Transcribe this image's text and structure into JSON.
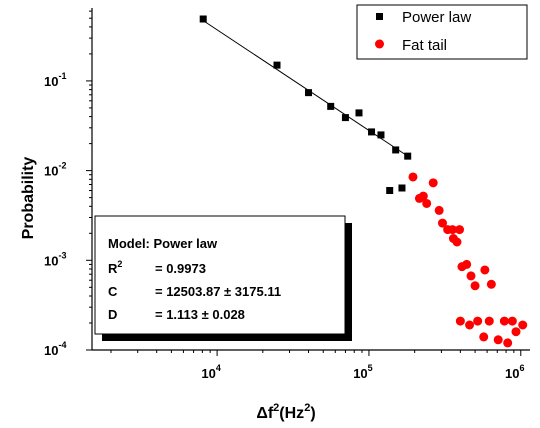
{
  "chart_data": {
    "type": "scatter",
    "title": "",
    "xlabel": {
      "prefix": "Δf",
      "sup": "2",
      "main": "(Hz",
      "sup2": "2",
      "suffix": ")"
    },
    "ylabel": "Probability",
    "xscale": "log",
    "yscale": "log",
    "xlim": [
      1500,
      1150000
    ],
    "ylim": [
      0.0001,
      0.65
    ],
    "xticks": [
      {
        "base": "10",
        "exp": "4"
      },
      {
        "base": "10",
        "exp": "5"
      },
      {
        "base": "10",
        "exp": "6"
      }
    ],
    "yticks": [
      {
        "base": "10",
        "exp": "-1"
      },
      {
        "base": "10",
        "exp": "-2"
      },
      {
        "base": "10",
        "exp": "-3"
      },
      {
        "base": "10",
        "exp": "-4"
      }
    ],
    "legend": {
      "position": "top-right"
    },
    "series": [
      {
        "name": "Power law",
        "marker": "square",
        "color": "#000000",
        "points": [
          [
            8100,
            0.49
          ],
          [
            24800,
            0.15
          ],
          [
            40000,
            0.074
          ],
          [
            56000,
            0.052
          ],
          [
            70000,
            0.039
          ],
          [
            86000,
            0.044
          ],
          [
            104000,
            0.027
          ],
          [
            120000,
            0.025
          ],
          [
            150000,
            0.017
          ],
          [
            180000,
            0.0145
          ],
          [
            137000,
            0.006
          ],
          [
            165000,
            0.0064
          ]
        ]
      },
      {
        "name": "Fat tail",
        "marker": "circle",
        "color": "#ff0000",
        "points": [
          [
            195000,
            0.0085
          ],
          [
            215000,
            0.0049
          ],
          [
            228000,
            0.0052
          ],
          [
            240000,
            0.0043
          ],
          [
            265000,
            0.0073
          ],
          [
            290000,
            0.0036
          ],
          [
            305000,
            0.0026
          ],
          [
            330000,
            0.0022
          ],
          [
            355000,
            0.0022
          ],
          [
            380000,
            0.0016
          ],
          [
            395000,
            0.0022
          ],
          [
            360000,
            0.00175
          ],
          [
            410000,
            0.00085
          ],
          [
            440000,
            0.0009
          ],
          [
            470000,
            0.00067
          ],
          [
            500000,
            0.00052
          ],
          [
            580000,
            0.00078
          ],
          [
            640000,
            0.00054
          ],
          [
            400000,
            0.00021
          ],
          [
            460000,
            0.00019
          ],
          [
            520000,
            0.00021
          ],
          [
            570000,
            0.00014
          ],
          [
            620000,
            0.00021
          ],
          [
            710000,
            0.00013
          ],
          [
            780000,
            0.00021
          ],
          [
            820000,
            0.00012
          ],
          [
            880000,
            0.00021
          ],
          [
            930000,
            0.00016
          ],
          [
            1030000,
            0.00019
          ]
        ]
      }
    ],
    "fit_line": {
      "x": [
        8100,
        180000
      ],
      "y": [
        0.47,
        0.0145
      ]
    },
    "model_box": {
      "title": "Model: Power law",
      "rows": [
        {
          "label": "R",
          "sup": "2",
          "value": "= 0.9973"
        },
        {
          "label": "C",
          "sup": "",
          "value": "= 12503.87 ± 3175.11"
        },
        {
          "label": "D",
          "sup": "",
          "value": "= 1.113 ± 0.028"
        }
      ]
    }
  }
}
